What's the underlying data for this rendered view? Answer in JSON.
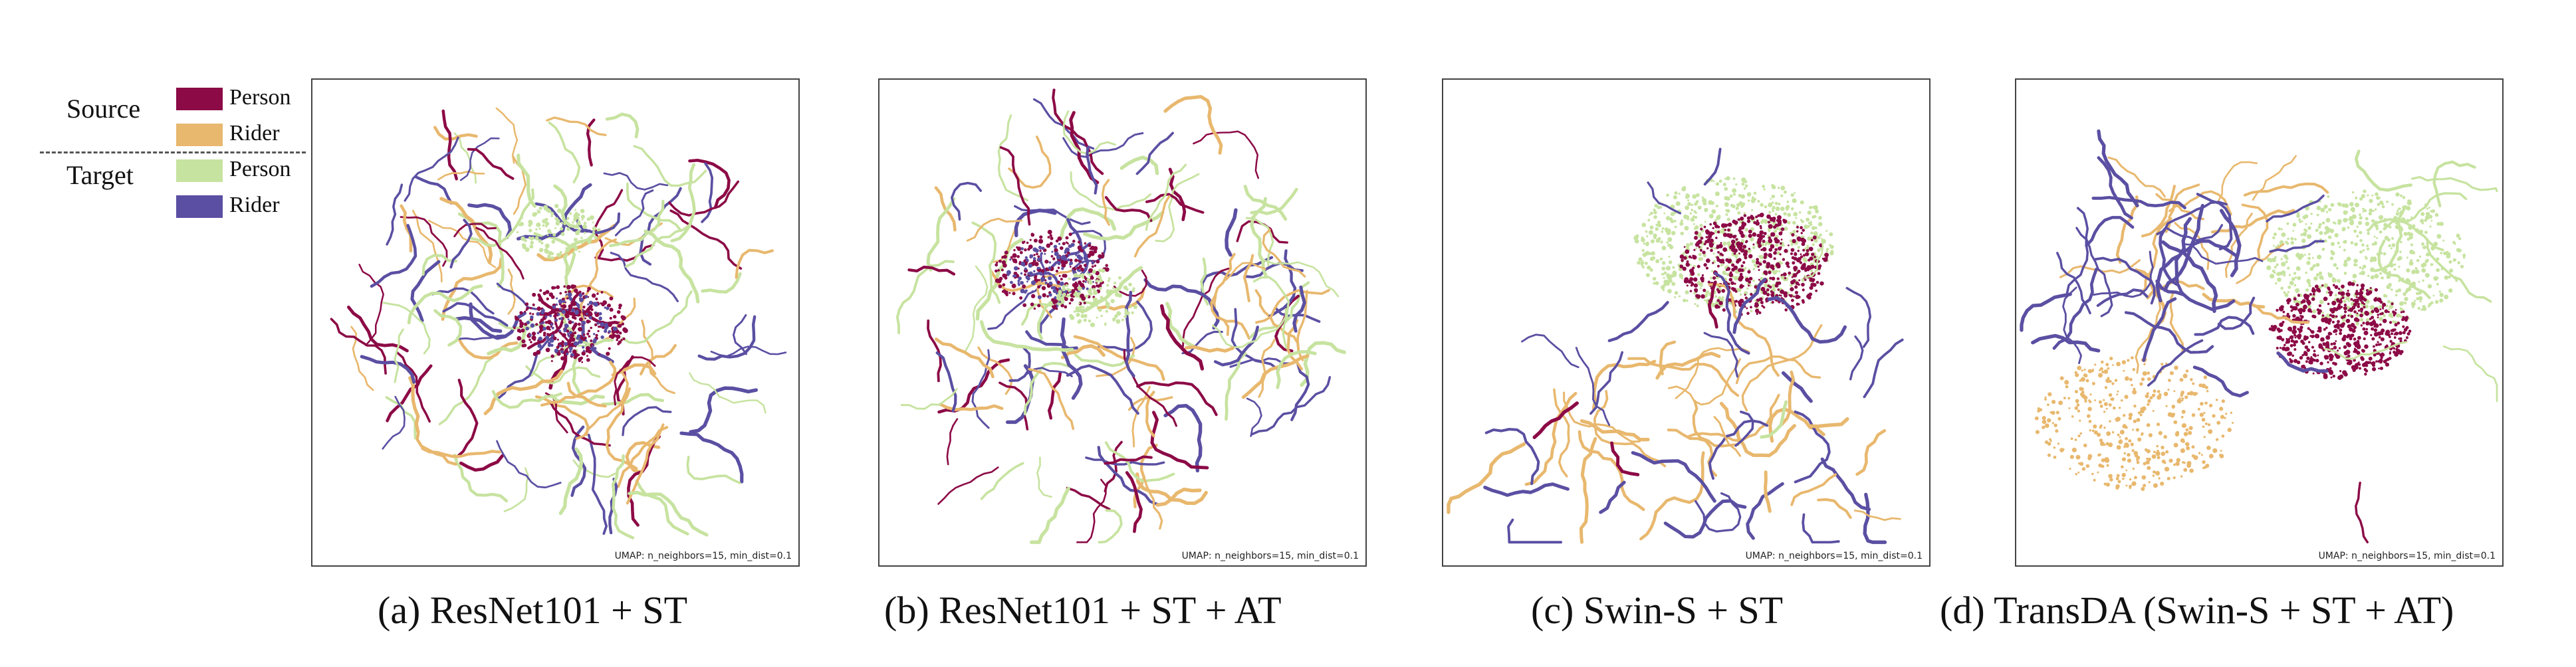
{
  "legend": {
    "source_label": "Source",
    "target_label": "Target",
    "entries": [
      {
        "group": "Source",
        "label": "Person",
        "color": "#8c0a46"
      },
      {
        "group": "Source",
        "label": "Rider",
        "color": "#e8b86e"
      },
      {
        "group": "Target",
        "label": "Person",
        "color": "#c7e3a0"
      },
      {
        "group": "Target",
        "label": "Rider",
        "color": "#5a4fa2"
      }
    ]
  },
  "chart_data": [
    {
      "type": "scatter",
      "caption": "(a) ResNet101 + ST",
      "annotation": "UMAP: n_neighbors=15, min_dist=0.1",
      "layout_style": "scattered"
    },
    {
      "type": "scatter",
      "caption": "(b) ResNet101 + ST + AT",
      "annotation": "UMAP: n_neighbors=15, min_dist=0.1",
      "layout_style": "scattered"
    },
    {
      "type": "scatter",
      "caption": "(c) Swin-S + ST",
      "annotation": "UMAP: n_neighbors=15, min_dist=0.1",
      "layout_style": "grouped"
    },
    {
      "type": "scatter",
      "caption": "(d) TransDA (Swin-S + ST + AT)",
      "annotation": "UMAP: n_neighbors=15, min_dist=0.1",
      "layout_style": "clustered"
    }
  ]
}
